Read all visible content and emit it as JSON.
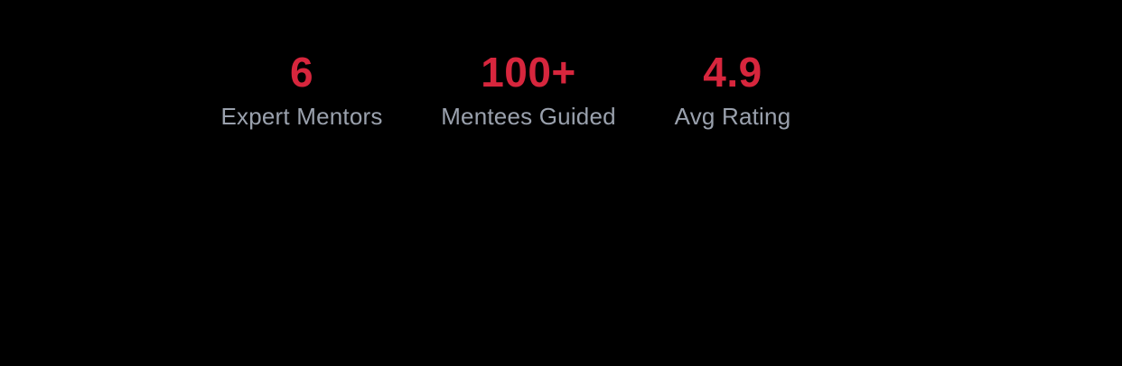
{
  "colors": {
    "background": "#000000",
    "accent": "#d7263d",
    "label": "#9aa1ad"
  },
  "stats": [
    {
      "value": "6",
      "label": "Expert Mentors"
    },
    {
      "value": "100+",
      "label": "Mentees Guided"
    },
    {
      "value": "4.9",
      "label": "Avg Rating"
    }
  ]
}
